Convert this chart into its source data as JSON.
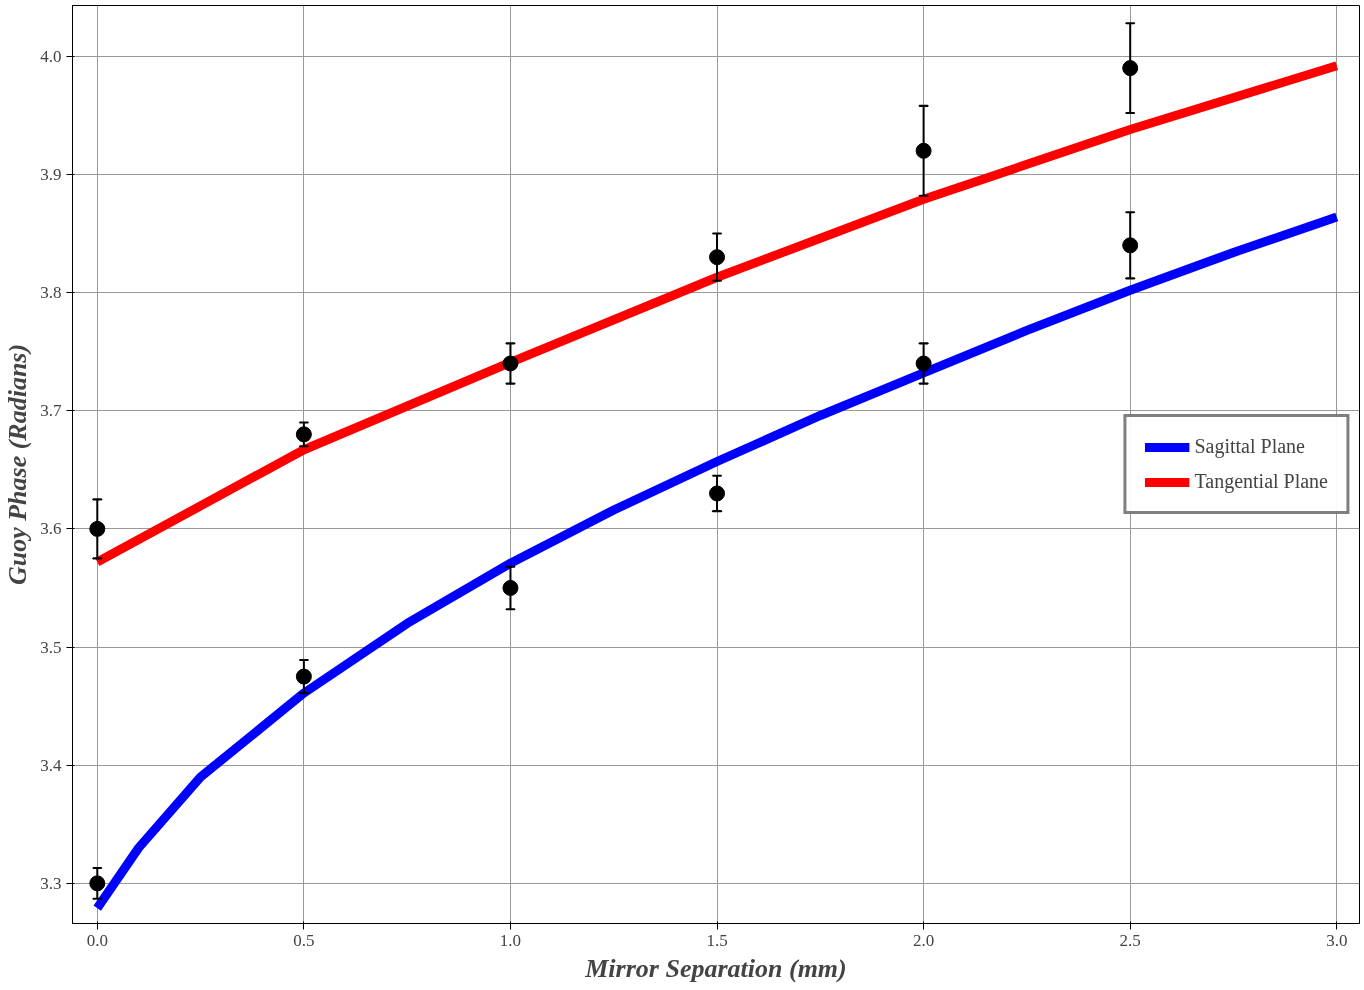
{
  "chart_data": {
    "type": "line",
    "xlabel": "Mirror Separation (mm)",
    "ylabel": "Guoy Phase (Radians)",
    "xlim": [
      -0.06,
      3.055
    ],
    "ylim": [
      3.266,
      4.043
    ],
    "xticks": [
      {
        "value": 0,
        "label": "0.0"
      },
      {
        "value": 0.5,
        "label": "0.5"
      },
      {
        "value": 1,
        "label": "1.0"
      },
      {
        "value": 1.5,
        "label": "1.5"
      },
      {
        "value": 2,
        "label": "2.0"
      },
      {
        "value": 2.5,
        "label": "2.5"
      },
      {
        "value": 3,
        "label": "3.0"
      }
    ],
    "yticks": [
      {
        "value": 3.3,
        "label": "3.3"
      },
      {
        "value": 3.4,
        "label": "3.4"
      },
      {
        "value": 3.5,
        "label": "3.5"
      },
      {
        "value": 3.6,
        "label": "3.6"
      },
      {
        "value": 3.7,
        "label": "3.7"
      },
      {
        "value": 3.8,
        "label": "3.8"
      },
      {
        "value": 3.9,
        "label": "3.9"
      },
      {
        "value": 4.0,
        "label": "4.0"
      }
    ],
    "grid": true,
    "legend": "right",
    "series": [
      {
        "name": "Sagittal Plane",
        "color": "#0000ff",
        "marker": "none",
        "x": [
          0,
          0.1,
          0.25,
          0.5,
          0.75,
          1,
          1.25,
          1.5,
          1.75,
          2,
          2.25,
          2.5,
          2.75,
          3
        ],
        "values": [
          3.279,
          3.33,
          3.39,
          3.461,
          3.52,
          3.571,
          3.616,
          3.657,
          3.696,
          3.732,
          3.768,
          3.802,
          3.834,
          3.864
        ]
      },
      {
        "name": "Tangential Plane",
        "color": "#ff0000",
        "marker": "none",
        "x": [
          0,
          0.5,
          1,
          1.5,
          2,
          2.5,
          3
        ],
        "values": [
          3.572,
          3.667,
          3.741,
          3.813,
          3.879,
          3.938,
          3.992
        ]
      },
      {
        "type": "scatter",
        "color": "#000000",
        "marker": "circle",
        "x": [
          0,
          0.5,
          1,
          1.5,
          2,
          2.5
        ],
        "values": [
          3.3,
          3.475,
          3.55,
          3.63,
          3.74,
          3.84
        ],
        "errors": [
          0.013,
          0.014,
          0.018,
          0.015,
          0.017,
          0.028
        ]
      },
      {
        "type": "scatter",
        "color": "#000000",
        "marker": "circle",
        "x": [
          0,
          0.5,
          1,
          1.5,
          2,
          2.5
        ],
        "values": [
          3.6,
          3.68,
          3.74,
          3.83,
          3.92,
          3.99
        ],
        "errors": [
          0.025,
          0.01,
          0.017,
          0.02,
          0.038,
          0.038
        ]
      }
    ]
  }
}
